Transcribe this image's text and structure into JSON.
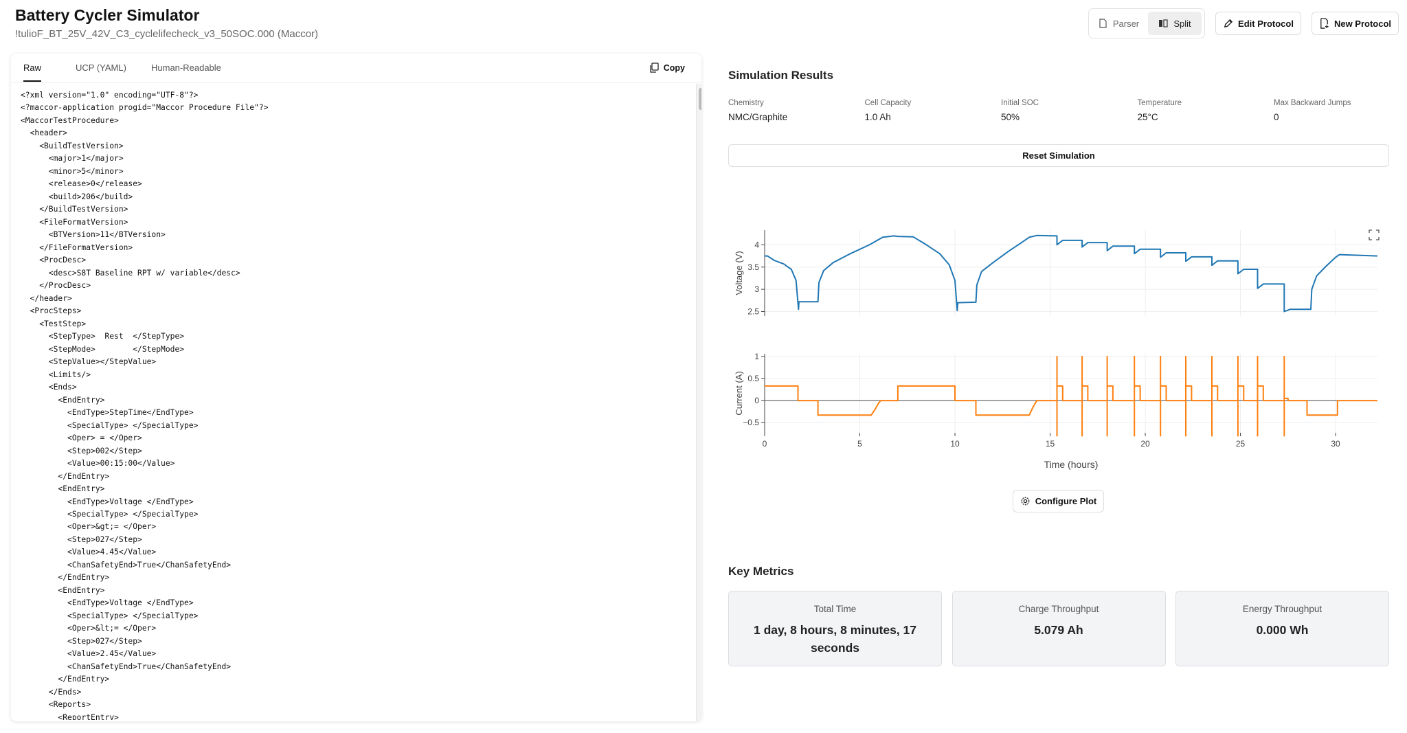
{
  "header": {
    "title": "Battery Cycler Simulator",
    "subtitle": "!tulioF_BT_25V_42V_C3_cyclelifecheck_v3_50SOC.000 (Maccor)"
  },
  "toolbar": {
    "view_modes": [
      "Parser",
      "Split"
    ],
    "active_view": "Split",
    "edit_button": "Edit Protocol",
    "new_button": "New Protocol"
  },
  "editor": {
    "tabs": [
      "Raw",
      "UCP (YAML)",
      "Human-Readable"
    ],
    "active_tab": "Raw",
    "copy_button": "Copy",
    "lines": [
      "<?xml version=\"1.0\" encoding=\"UTF-8\"?>",
      "<?maccor-application progid=\"Maccor Procedure File\"?>",
      "<MaccorTestProcedure>",
      "  <header>",
      "    <BuildTestVersion>",
      "      <major>1</major>",
      "      <minor>5</minor>",
      "      <release>0</release>",
      "      <build>206</build>",
      "    </BuildTestVersion>",
      "    <FileFormatVersion>",
      "      <BTVersion>11</BTVersion>",
      "    </FileFormatVersion>",
      "    <ProcDesc>",
      "      <desc>S8T Baseline RPT w/ variable</desc>",
      "    </ProcDesc>",
      "  </header>",
      "  <ProcSteps>",
      "    <TestStep>",
      "      <StepType>  Rest  </StepType>",
      "      <StepMode>        </StepMode>",
      "      <StepValue></StepValue>",
      "      <Limits/>",
      "      <Ends>",
      "        <EndEntry>",
      "          <EndType>StepTime</EndType>",
      "          <SpecialType> </SpecialType>",
      "          <Oper> = </Oper>",
      "          <Step>002</Step>",
      "          <Value>00:15:00</Value>",
      "        </EndEntry>",
      "        <EndEntry>",
      "          <EndType>Voltage </EndType>",
      "          <SpecialType> </SpecialType>",
      "          <Oper>&gt;= </Oper>",
      "          <Step>027</Step>",
      "          <Value>4.45</Value>",
      "          <ChanSafetyEnd>True</ChanSafetyEnd>",
      "        </EndEntry>",
      "        <EndEntry>",
      "          <EndType>Voltage </EndType>",
      "          <SpecialType> </SpecialType>",
      "          <Oper>&lt;= </Oper>",
      "          <Step>027</Step>",
      "          <Value>2.45</Value>",
      "          <ChanSafetyEnd>True</ChanSafetyEnd>",
      "        </EndEntry>",
      "      </Ends>",
      "      <Reports>",
      "        <ReportEntry>"
    ]
  },
  "simulation": {
    "title": "Simulation Results",
    "parameters": [
      {
        "label": "Chemistry",
        "value": "NMC/Graphite"
      },
      {
        "label": "Cell Capacity",
        "value": "1.0 Ah"
      },
      {
        "label": "Initial SOC",
        "value": "50%"
      },
      {
        "label": "Temperature",
        "value": "25°C"
      },
      {
        "label": "Max Backward Jumps",
        "value": "0"
      }
    ],
    "reset_button": "Reset Simulation",
    "configure_button": "Configure Plot"
  },
  "chart_data": [
    {
      "type": "line",
      "ylabel": "Voltage (V)",
      "xlim": [
        0,
        32.2
      ],
      "ylim": [
        2.4,
        4.33
      ],
      "yticks": [
        2.5,
        3,
        3.5,
        4
      ],
      "grid": true,
      "x": [
        0,
        0.15,
        0.5,
        1.0,
        1.4,
        1.65,
        1.78,
        1.8,
        2.8,
        2.85,
        3.1,
        3.6,
        4.5,
        5.5,
        6.2,
        6.8,
        7.0,
        7.8,
        8.5,
        9.2,
        9.7,
        10.0,
        10.12,
        10.15,
        11.1,
        11.15,
        11.4,
        12.0,
        12.8,
        13.5,
        13.9,
        14.3,
        15.36,
        15.36,
        15.66,
        16.68,
        16.68,
        16.98,
        18.0,
        18.0,
        18.3,
        19.43,
        19.43,
        19.73,
        20.8,
        20.8,
        21.1,
        22.13,
        22.13,
        22.43,
        23.5,
        23.5,
        23.8,
        24.87,
        24.87,
        25.17,
        25.9,
        25.9,
        26.2,
        27.3,
        27.3,
        27.6,
        28.7,
        28.75,
        29.0,
        29.5,
        30.0,
        30.2,
        32.2
      ],
      "series": [
        {
          "color": "#1f77b4",
          "values": [
            3.75,
            3.75,
            3.65,
            3.57,
            3.45,
            3.2,
            2.55,
            2.72,
            2.72,
            3.15,
            3.42,
            3.6,
            3.8,
            4.0,
            4.17,
            4.2,
            4.19,
            4.18,
            4.0,
            3.8,
            3.55,
            3.2,
            2.52,
            2.7,
            2.71,
            3.1,
            3.4,
            3.6,
            3.85,
            4.05,
            4.17,
            4.21,
            4.2,
            4.0,
            4.1,
            4.1,
            3.95,
            4.05,
            4.05,
            3.87,
            3.97,
            3.97,
            3.8,
            3.9,
            3.9,
            3.72,
            3.82,
            3.82,
            3.63,
            3.73,
            3.73,
            3.54,
            3.64,
            3.64,
            3.35,
            3.45,
            3.45,
            3.02,
            3.12,
            3.12,
            2.5,
            2.55,
            2.55,
            3.0,
            3.3,
            3.52,
            3.72,
            3.78,
            3.75
          ]
        }
      ]
    },
    {
      "type": "line",
      "ylabel": "Current (A)",
      "xlabel": "Time (hours)",
      "xlim": [
        0,
        32.2
      ],
      "xticks": [
        0,
        5,
        10,
        15,
        20,
        25,
        30
      ],
      "ylim": [
        -0.73,
        1.06
      ],
      "yticks": [
        {
          "value": -0.5,
          "label": "−0.5"
        },
        0,
        0.5,
        1
      ],
      "grid": true,
      "x": [
        0,
        1.75,
        1.75,
        2.8,
        2.8,
        5.6,
        5.8,
        6.0,
        6.1,
        7.0,
        7.0,
        10.0,
        10.0,
        11.1,
        11.1,
        13.9,
        14.1,
        14.3,
        15.36,
        15.36,
        15.36,
        15.36,
        15.66,
        15.66,
        16.68,
        16.68,
        16.68,
        16.68,
        16.98,
        16.98,
        18.0,
        18.0,
        18.0,
        18.0,
        18.3,
        18.3,
        19.43,
        19.43,
        19.43,
        19.43,
        19.73,
        19.73,
        20.8,
        20.8,
        20.8,
        20.8,
        21.1,
        21.1,
        22.13,
        22.13,
        22.13,
        22.13,
        22.43,
        22.43,
        23.5,
        23.5,
        23.5,
        23.5,
        23.8,
        23.8,
        24.87,
        24.87,
        24.87,
        24.87,
        25.17,
        25.17,
        25.9,
        25.9,
        25.9,
        25.9,
        26.2,
        26.2,
        27.3,
        27.3,
        27.3,
        27.3,
        27.5,
        27.5,
        28.5,
        28.5,
        30.1,
        30.1,
        32.2
      ],
      "series": [
        {
          "color": "#ff7f0e",
          "values": [
            0.33,
            0.33,
            0,
            0,
            -0.33,
            -0.33,
            -0.2,
            -0.05,
            0,
            0,
            0.33,
            0.33,
            0,
            0,
            -0.33,
            -0.33,
            -0.15,
            0,
            0,
            1,
            -0.8,
            0.33,
            0.33,
            0,
            0,
            1,
            -0.8,
            0.33,
            0.33,
            0,
            0,
            1,
            -0.8,
            0.33,
            0.33,
            0,
            0,
            1,
            -0.8,
            0.33,
            0.33,
            0,
            0,
            1,
            -0.8,
            0.33,
            0.33,
            0,
            0,
            1,
            -0.8,
            0.33,
            0.33,
            0,
            0,
            1,
            -0.8,
            0.33,
            0.33,
            0,
            0,
            1,
            -0.8,
            0.33,
            0.33,
            0,
            0,
            1,
            -0.8,
            0.33,
            0.33,
            0,
            0,
            1,
            -0.8,
            0.05,
            0.05,
            0,
            0,
            -0.33,
            -0.33,
            0,
            0
          ]
        }
      ]
    }
  ],
  "metrics": {
    "title": "Key Metrics",
    "cards": [
      {
        "label": "Total Time",
        "value": "1 day, 8 hours, 8 minutes, 17 seconds"
      },
      {
        "label": "Charge Throughput",
        "value": "5.079 Ah"
      },
      {
        "label": "Energy Throughput",
        "value": "0.000 Wh"
      }
    ]
  }
}
